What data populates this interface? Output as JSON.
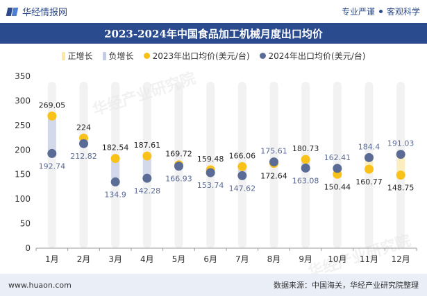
{
  "header": {
    "brand": "华经情报网",
    "slogan_left": "专业严谨",
    "slogan_right": "客观科学"
  },
  "watermark": "华经产业研究院",
  "footer": {
    "website": "www.huaon.com",
    "source": "数据来源：中国海关，华经产业研究院整理"
  },
  "colors": {
    "positive_bar": "#fbeec0",
    "negative_bar": "#d3d9ea",
    "s2023": "#f9c21a",
    "s2024": "#5a6b95",
    "neutral_bar": "#e8e8e8",
    "title_bg": "#2a4b8d"
  },
  "chart_data": {
    "type": "line",
    "title": "2023-2024年中国食品加工机械月度出口均价",
    "legend": [
      "正增长",
      "负增长",
      "2023年出口均价(美元/台)",
      "2024年出口均价(美元/台)"
    ],
    "categories": [
      "1月",
      "2月",
      "3月",
      "4月",
      "5月",
      "6月",
      "7月",
      "8月",
      "9月",
      "10月",
      "11月",
      "12月"
    ],
    "series": [
      {
        "name": "2023年出口均价(美元/台)",
        "values": [
          269.05,
          224,
          182.54,
          187.61,
          169.72,
          159.48,
          166.06,
          172.64,
          180.73,
          150.44,
          160.77,
          148.75
        ]
      },
      {
        "name": "2024年出口均价(美元/台)",
        "values": [
          192.74,
          212.82,
          134.9,
          142.28,
          166.93,
          153.74,
          147.62,
          175.61,
          163.08,
          162.41,
          184.4,
          191.03
        ]
      }
    ],
    "ylim": [
      0,
      350
    ],
    "yticks": [
      0,
      50,
      100,
      150,
      200,
      250,
      300,
      350
    ],
    "xlabel": "",
    "ylabel": ""
  }
}
